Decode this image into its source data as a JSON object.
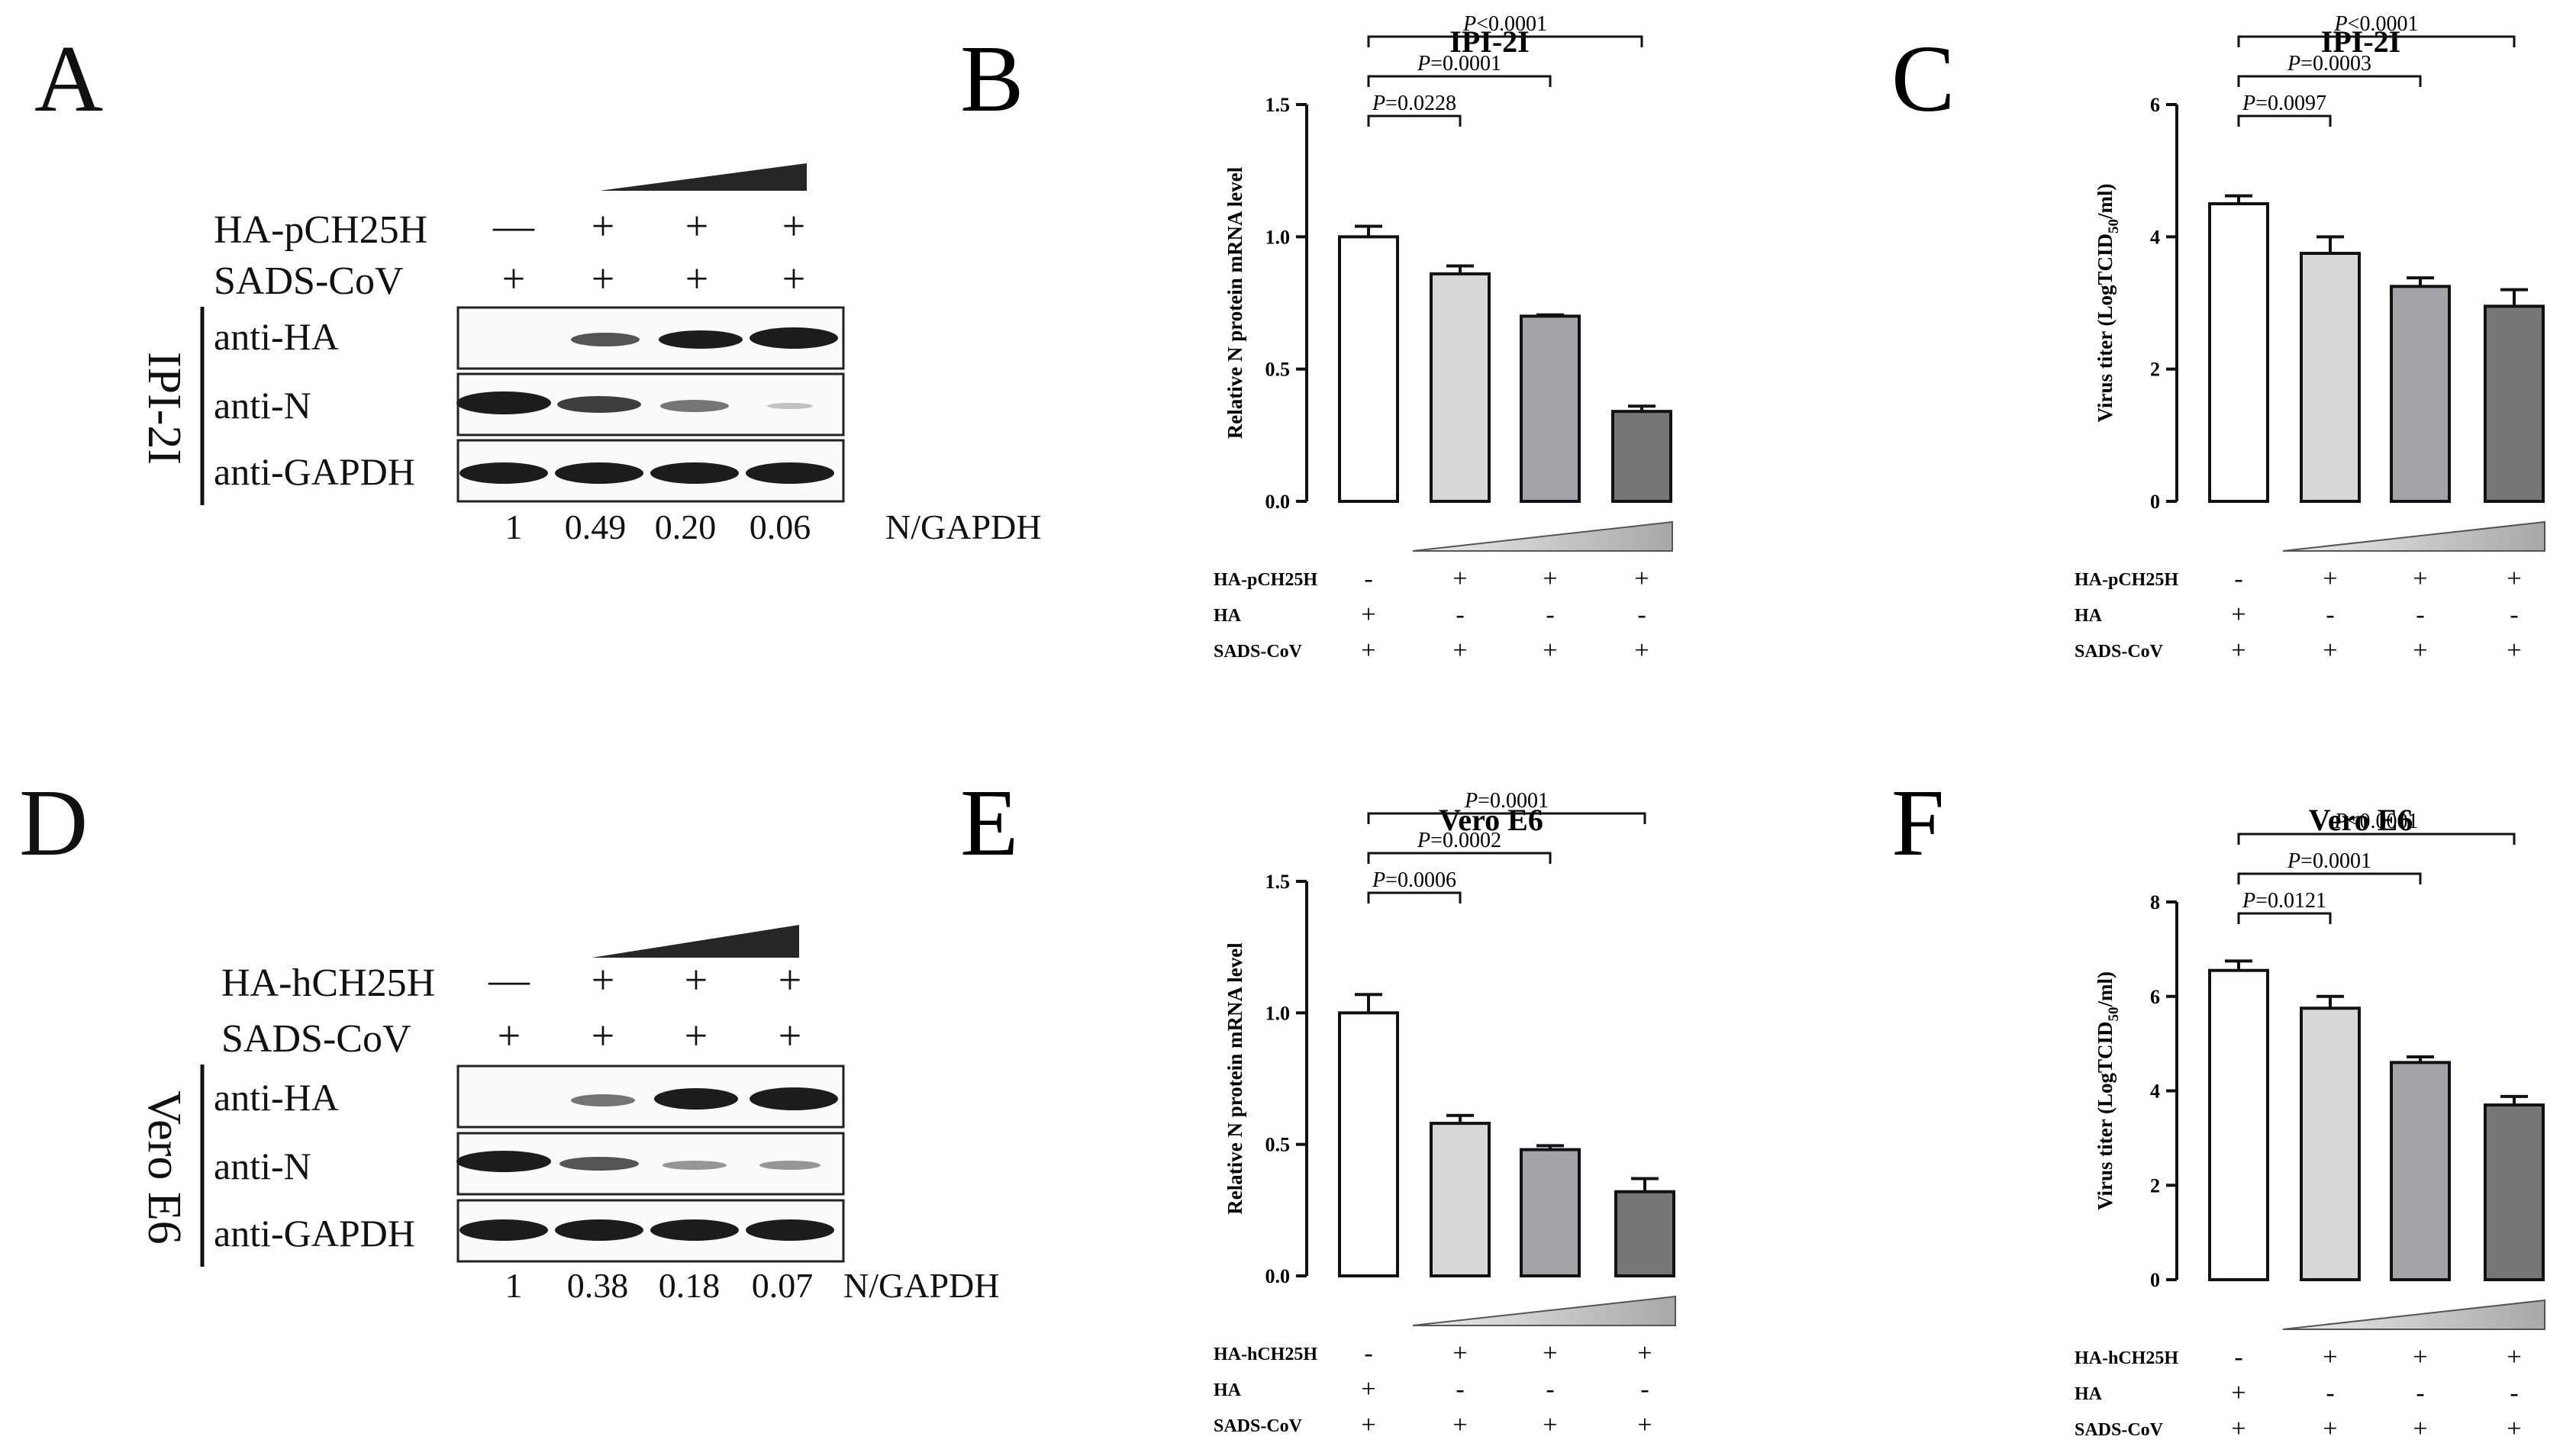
{
  "panels": {
    "A": {
      "letter": "A",
      "treatment_label": "HA-pCH25H",
      "virus_label": "SADS-CoV",
      "treatment_signs": [
        "—",
        "+",
        "+",
        "+"
      ],
      "virus_signs": [
        "+",
        "+",
        "+",
        "+"
      ],
      "cell_line": "IPI-2I",
      "blots": [
        "anti-HA",
        "anti-N",
        "anti-GAPDH"
      ],
      "quant_values": [
        "1",
        "0.49",
        "0.20",
        "0.06"
      ],
      "quant_label": "N/GAPDH"
    },
    "D": {
      "letter": "D",
      "treatment_label": "HA-hCH25H",
      "virus_label": "SADS-CoV",
      "treatment_signs": [
        "—",
        "+",
        "+",
        "+"
      ],
      "virus_signs": [
        "+",
        "+",
        "+",
        "+"
      ],
      "cell_line": "Vero E6",
      "blots": [
        "anti-HA",
        "anti-N",
        "anti-GAPDH"
      ],
      "quant_values": [
        "1",
        "0.38",
        "0.18",
        "0.07"
      ],
      "quant_label": "N/GAPDH"
    }
  },
  "chart_data": [
    {
      "panel": "B",
      "type": "bar",
      "title": "IPI-2I",
      "ylabel": "Relative N protein mRNA level",
      "ylim": [
        0,
        1.5
      ],
      "yticks": [
        "0.0",
        "0.5",
        "1.0",
        "1.5"
      ],
      "values": [
        1.0,
        0.86,
        0.7,
        0.34
      ],
      "errors": [
        0.04,
        0.03,
        0.005,
        0.02
      ],
      "bar_colors": [
        "#ffffff",
        "#d7d7d7",
        "#a3a3a8",
        "#767676"
      ],
      "comparisons": [
        {
          "pvalue": "=0.0228",
          "from": 0,
          "to": 1
        },
        {
          "pvalue": "=0.0001",
          "from": 0,
          "to": 2
        },
        {
          "pvalue": "<0.0001",
          "from": 0,
          "to": 3
        }
      ],
      "rows": [
        {
          "label": "HA-pCH25H",
          "signs": [
            "-",
            "+",
            "+",
            "+"
          ]
        },
        {
          "label": "HA",
          "signs": [
            "+",
            "-",
            "-",
            "-"
          ]
        },
        {
          "label": "SADS-CoV",
          "signs": [
            "+",
            "+",
            "+",
            "+"
          ]
        }
      ]
    },
    {
      "panel": "C",
      "type": "bar",
      "title": "IPI-2I",
      "ylabel_main": "Virus titer (LogTCID",
      "ylabel_sub": "50",
      "ylabel_end": "/ml)",
      "ylim": [
        0,
        6
      ],
      "yticks": [
        "0",
        "2",
        "4",
        "6"
      ],
      "values": [
        4.5,
        3.75,
        3.25,
        2.95
      ],
      "errors": [
        0.12,
        0.25,
        0.13,
        0.25
      ],
      "bar_colors": [
        "#ffffff",
        "#d7d7d7",
        "#a3a3a8",
        "#767676"
      ],
      "comparisons": [
        {
          "pvalue": "=0.0097",
          "from": 0,
          "to": 1
        },
        {
          "pvalue": "=0.0003",
          "from": 0,
          "to": 2
        },
        {
          "pvalue": "<0.0001",
          "from": 0,
          "to": 3
        }
      ],
      "rows": [
        {
          "label": "HA-pCH25H",
          "signs": [
            "-",
            "+",
            "+",
            "+"
          ]
        },
        {
          "label": "HA",
          "signs": [
            "+",
            "-",
            "-",
            "-"
          ]
        },
        {
          "label": "SADS-CoV",
          "signs": [
            "+",
            "+",
            "+",
            "+"
          ]
        }
      ]
    },
    {
      "panel": "E",
      "type": "bar",
      "title": "Vero E6",
      "ylabel": "Relative N protein mRNA level",
      "ylim": [
        0,
        1.5
      ],
      "yticks": [
        "0.0",
        "0.5",
        "1.0",
        "1.5"
      ],
      "values": [
        1.0,
        0.58,
        0.48,
        0.32
      ],
      "errors": [
        0.07,
        0.03,
        0.015,
        0.05
      ],
      "bar_colors": [
        "#ffffff",
        "#d7d7d7",
        "#a3a3a8",
        "#767676"
      ],
      "comparisons": [
        {
          "pvalue": "=0.0006",
          "from": 0,
          "to": 1
        },
        {
          "pvalue": "=0.0002",
          "from": 0,
          "to": 2
        },
        {
          "pvalue": "=0.0001",
          "from": 0,
          "to": 3
        }
      ],
      "rows": [
        {
          "label": "HA-hCH25H",
          "signs": [
            "-",
            "+",
            "+",
            "+"
          ]
        },
        {
          "label": "HA",
          "signs": [
            "+",
            "-",
            "-",
            "-"
          ]
        },
        {
          "label": "SADS-CoV",
          "signs": [
            "+",
            "+",
            "+",
            "+"
          ]
        }
      ]
    },
    {
      "panel": "F",
      "type": "bar",
      "title": "Vero E6",
      "ylabel_main": "Virus titer (LogTCID",
      "ylabel_sub": "50",
      "ylabel_end": "/ml)",
      "ylim": [
        0,
        8
      ],
      "yticks": [
        "0",
        "2",
        "4",
        "6",
        "8"
      ],
      "values": [
        6.55,
        5.75,
        4.6,
        3.7
      ],
      "errors": [
        0.2,
        0.25,
        0.12,
        0.18
      ],
      "bar_colors": [
        "#ffffff",
        "#d7d7d7",
        "#a3a3a8",
        "#767676"
      ],
      "comparisons": [
        {
          "pvalue": "=0.0121",
          "from": 0,
          "to": 1
        },
        {
          "pvalue": "=0.0001",
          "from": 0,
          "to": 2
        },
        {
          "pvalue": "<0.0001",
          "from": 0,
          "to": 3
        }
      ],
      "rows": [
        {
          "label": "HA-hCH25H",
          "signs": [
            "-",
            "+",
            "+",
            "+"
          ]
        },
        {
          "label": "HA",
          "signs": [
            "+",
            "-",
            "-",
            "-"
          ]
        },
        {
          "label": "SADS-CoV",
          "signs": [
            "+",
            "+",
            "+",
            "+"
          ]
        }
      ]
    }
  ]
}
